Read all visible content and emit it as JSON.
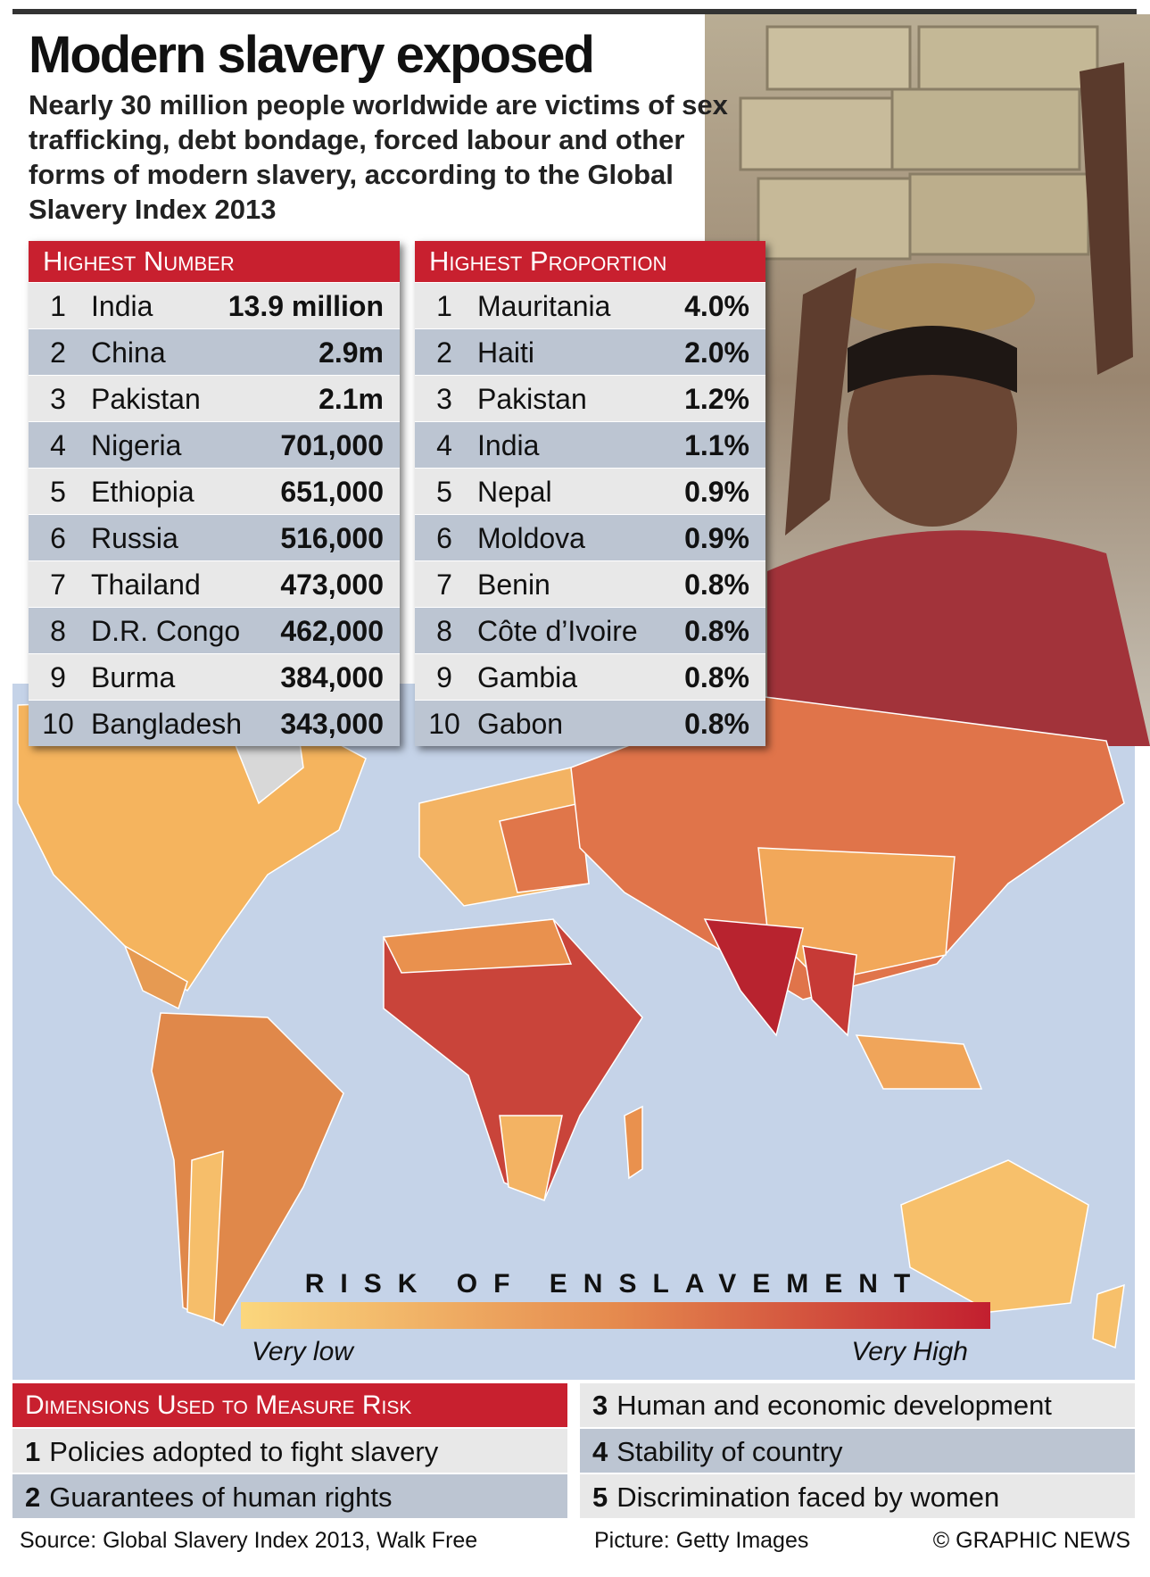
{
  "title": "Modern slavery exposed",
  "subtitle": "Nearly 30 million people worldwide are victims of sex trafficking, debt bondage, forced labour and other forms of modern slavery, according to the Global Slavery Index 2013",
  "highest_number": {
    "title": "Highest Number",
    "rows": [
      [
        1,
        "India",
        "13.9 million"
      ],
      [
        2,
        "China",
        "2.9m"
      ],
      [
        3,
        "Pakistan",
        "2.1m"
      ],
      [
        4,
        "Nigeria",
        "701,000"
      ],
      [
        5,
        "Ethiopia",
        "651,000"
      ],
      [
        6,
        "Russia",
        "516,000"
      ],
      [
        7,
        "Thailand",
        "473,000"
      ],
      [
        8,
        "D.R. Congo",
        "462,000"
      ],
      [
        9,
        "Burma",
        "384,000"
      ],
      [
        10,
        "Bangladesh",
        "343,000"
      ]
    ]
  },
  "highest_proportion": {
    "title": "Highest Proportion",
    "rows": [
      [
        1,
        "Mauritania",
        "4.0%"
      ],
      [
        2,
        "Haiti",
        "2.0%"
      ],
      [
        3,
        "Pakistan",
        "1.2%"
      ],
      [
        4,
        "India",
        "1.1%"
      ],
      [
        5,
        "Nepal",
        "0.9%"
      ],
      [
        6,
        "Moldova",
        "0.9%"
      ],
      [
        7,
        "Benin",
        "0.8%"
      ],
      [
        8,
        "Côte d’Ivoire",
        "0.8%"
      ],
      [
        9,
        "Gambia",
        "0.8%"
      ],
      [
        10,
        "Gabon",
        "0.8%"
      ]
    ]
  },
  "legend": {
    "title": "RISK OF ENSLAVEMENT",
    "low": "Very low",
    "high": "Very High"
  },
  "dimensions": {
    "title": "Dimensions Used to Measure Risk",
    "items": [
      [
        1,
        "Policies adopted to fight slavery"
      ],
      [
        2,
        "Guarantees of human rights"
      ],
      [
        3,
        "Human and economic development"
      ],
      [
        4,
        "Stability of country"
      ],
      [
        5,
        "Discrimination faced by women"
      ]
    ]
  },
  "footer": {
    "source": "Source: Global Slavery Index 2013, Walk Free",
    "picture": "Picture: Getty Images",
    "credit": "© GRAPHIC NEWS"
  }
}
